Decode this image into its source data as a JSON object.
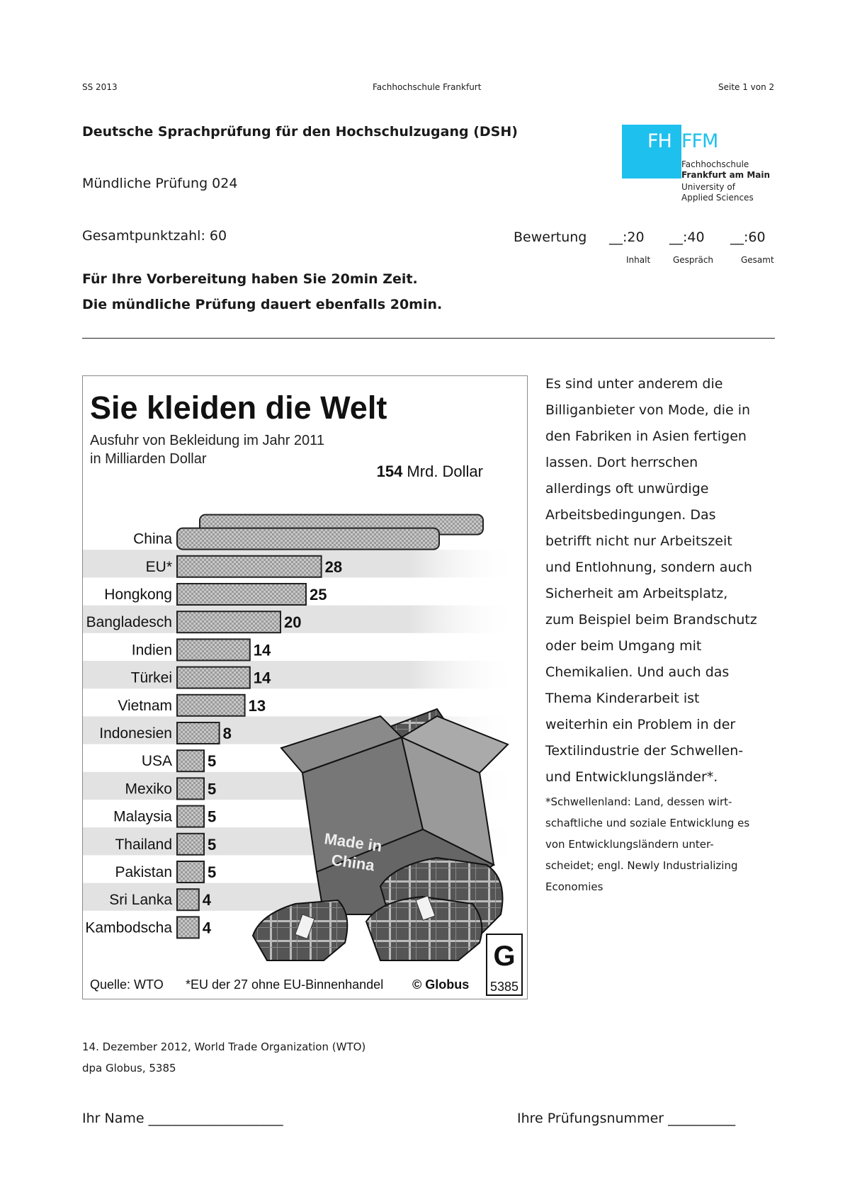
{
  "header": {
    "left": "SS 2013",
    "center": "Fachhochschule Frankfurt",
    "right": "Seite 1 von 2"
  },
  "title": "Deutsche Sprachprüfung für den Hochschulzugang (DSH)",
  "exam_label": "Mündliche Prüfung 024",
  "total_points": "Gesamtpunktzahl: 60",
  "rating": {
    "label": "Bewertung",
    "fields": [
      {
        "value": "__:20",
        "label": "Inhalt"
      },
      {
        "value": "__:40",
        "label": "Gespräch"
      },
      {
        "value": "__:60",
        "label": "Gesamt"
      }
    ]
  },
  "instructions": [
    "Für Ihre Vorbereitung haben Sie 20min Zeit.",
    "Die mündliche Prüfung dauert ebenfalls 20min."
  ],
  "logo": {
    "fh": "FH",
    "ffm": "FFM",
    "line1": "Fachhochschule",
    "line2": "Frankfurt am Main",
    "line3": "University of",
    "line4": "Applied Sciences"
  },
  "chart_data": {
    "type": "bar",
    "title": "Sie kleiden die Welt",
    "subtitle_line1": "Ausfuhr von Bekleidung im Jahr 2011",
    "subtitle_line2": "in Milliarden Dollar",
    "categories": [
      "China",
      "EU*",
      "Hongkong",
      "Bangladesch",
      "Indien",
      "Türkei",
      "Vietnam",
      "Indonesien",
      "USA",
      "Mexiko",
      "Malaysia",
      "Thailand",
      "Pakistan",
      "Sri Lanka",
      "Kambodscha"
    ],
    "values": [
      154,
      28,
      25,
      20,
      14,
      14,
      13,
      8,
      5,
      5,
      5,
      5,
      5,
      4,
      4
    ],
    "value_labels": [
      "154 Mrd. Dollar",
      "28",
      "25",
      "20",
      "14",
      "14",
      "13",
      "8",
      "5",
      "5",
      "5",
      "5",
      "5",
      "4",
      "4"
    ],
    "source": "Quelle: WTO",
    "footnote": "*EU der 27 ohne EU-Binnenhandel",
    "publisher": "© Globus",
    "graphic_number": "5385",
    "box_text_line1": "Made in",
    "box_text_line2": "China",
    "logo_letter": "G"
  },
  "side_text": [
    "Es sind unter anderem die",
    "Billiganbieter von Mode, die in",
    "den Fabriken in Asien fertigen",
    "lassen. Dort herrschen",
    "allerdings oft unwürdige",
    "Arbeitsbedingungen. Das",
    "betrifft nicht nur Arbeitszeit",
    "und Entlohnung, sondern auch",
    "Sicherheit am Arbeitsplatz,",
    "zum Beispiel beim Brandschutz",
    "oder beim Umgang mit",
    "Chemikalien. Und auch das",
    "Thema Kinderarbeit ist",
    "weiterhin ein Problem in der",
    "Textilindustrie der Schwellen-",
    "und Entwicklungsländer*."
  ],
  "footnote_text": [
    "*Schwellenland: Land, dessen wirt-",
    "schaftliche und soziale Entwicklung es",
    "von Entwicklungsländern unter-",
    "scheidet; engl. Newly Industrializing",
    "Economies"
  ],
  "source_lines": [
    "14. Dezember 2012, World Trade Organization (WTO)",
    "dpa Globus, 5385"
  ],
  "signature": {
    "name_label": "Ihr Name ____________________",
    "number_label": "Ihre Prüfungsnummer __________"
  }
}
